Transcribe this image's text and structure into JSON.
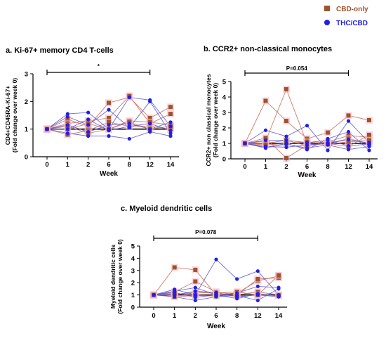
{
  "legend": [
    {
      "name": "CBD-only",
      "color": "#a0522d",
      "marker": "square"
    },
    {
      "name": "THC/CBD",
      "color": "#1f1fe8",
      "marker": "circle"
    }
  ],
  "colors": {
    "cbd": "#a0522d",
    "cbd_halo": "#f2b8c4",
    "thc": "#1f1fe8",
    "thc_line": "#5b5bd6",
    "cbd_line": "#d06a5a",
    "axis": "#000000"
  },
  "chart_data": [
    {
      "type": "line",
      "title": "a. Ki-67+ memory CD4 T-cells",
      "xlabel": "Week",
      "ylabel": [
        "CD4+CD45RA-Ki-67+",
        "(Fold change over week 0)"
      ],
      "categories": [
        "0",
        "1",
        "2",
        "6",
        "8",
        "12",
        "14"
      ],
      "ylim": [
        0,
        3
      ],
      "yticks": [
        0,
        1,
        2,
        3
      ],
      "significance": "*",
      "sig_span": [
        "0",
        "12"
      ],
      "series": [
        {
          "group": "CBD-only",
          "values": [
            1,
            1.35,
            1.1,
            1.95,
            2.15,
            1.4,
            1.8
          ]
        },
        {
          "group": "CBD-only",
          "values": [
            1,
            1.2,
            1.3,
            1.4,
            2.2,
            1.2,
            1.55
          ]
        },
        {
          "group": "CBD-only",
          "values": [
            1,
            0.8,
            0.95,
            1.25,
            1.1,
            1.1,
            1.0
          ]
        },
        {
          "group": "CBD-only",
          "values": [
            1,
            1.0,
            1.2,
            1.0,
            1.3,
            1.25,
            1.15
          ]
        },
        {
          "group": "CBD-only",
          "values": [
            1,
            1.1,
            0.85,
            1.0,
            1.25,
            1.0,
            1.1
          ]
        },
        {
          "group": "THC/CBD",
          "values": [
            1,
            1.55,
            1.6,
            1.0,
            2.15,
            2.05,
            1.1
          ]
        },
        {
          "group": "THC/CBD",
          "values": [
            1,
            1.45,
            1.15,
            1.7,
            1.05,
            2.0,
            0.85
          ]
        },
        {
          "group": "THC/CBD",
          "values": [
            1,
            1.15,
            0.9,
            1.15,
            1.2,
            1.0,
            1.25
          ]
        },
        {
          "group": "THC/CBD",
          "values": [
            1,
            0.85,
            0.75,
            0.75,
            0.65,
            0.9,
            0.75
          ]
        },
        {
          "group": "THC/CBD",
          "values": [
            1,
            1.0,
            1.35,
            0.95,
            1.1,
            1.2,
            0.95
          ]
        }
      ]
    },
    {
      "type": "line",
      "title": "b. CCR2+ non-classical  monocytes",
      "xlabel": "Week",
      "ylabel": [
        "CCR2+ non classical monocytes",
        "(Fold change over week 0)"
      ],
      "categories": [
        "0",
        "1",
        "2",
        "6",
        "8",
        "12",
        "14"
      ],
      "ylim": [
        0,
        5
      ],
      "yticks": [
        0,
        1,
        2,
        3,
        4,
        5
      ],
      "significance": "P=0.054",
      "sig_span": [
        "0",
        "12"
      ],
      "series": [
        {
          "group": "CBD-only",
          "values": [
            1,
            3.75,
            2.45,
            1.3,
            1.7,
            2.8,
            2.5
          ]
        },
        {
          "group": "CBD-only",
          "values": [
            1,
            1.15,
            4.5,
            1.0,
            1.1,
            1.5,
            1.4
          ]
        },
        {
          "group": "CBD-only",
          "values": [
            1,
            1.35,
            0.05,
            0.9,
            1.0,
            0.8,
            1.55
          ]
        },
        {
          "group": "CBD-only",
          "values": [
            1,
            1.0,
            1.2,
            0.85,
            1.0,
            1.3,
            1.0
          ]
        },
        {
          "group": "CBD-only",
          "values": [
            1,
            0.9,
            1.0,
            1.1,
            0.95,
            1.1,
            1.2
          ]
        },
        {
          "group": "THC/CBD",
          "values": [
            1,
            1.85,
            1.45,
            2.15,
            0.55,
            2.45,
            1.05
          ]
        },
        {
          "group": "THC/CBD",
          "values": [
            1,
            0.7,
            1.0,
            0.6,
            1.3,
            1.75,
            0.55
          ]
        },
        {
          "group": "THC/CBD",
          "values": [
            1,
            1.2,
            1.2,
            1.05,
            1.2,
            0.85,
            0.95
          ]
        },
        {
          "group": "THC/CBD",
          "values": [
            1,
            0.8,
            0.75,
            0.9,
            1.0,
            1.25,
            1.0
          ]
        },
        {
          "group": "THC/CBD",
          "values": [
            1,
            0.75,
            0.95,
            0.7,
            0.9,
            0.6,
            0.8
          ]
        }
      ]
    },
    {
      "type": "line",
      "title": "c. Myeloid dendritic cells",
      "xlabel": "Week",
      "ylabel": [
        "Myeloid dendritic cells",
        "(Fold change over week 0)"
      ],
      "categories": [
        "0",
        "1",
        "2",
        "6",
        "8",
        "12",
        "14"
      ],
      "ylim": [
        0,
        5
      ],
      "yticks": [
        0,
        1,
        2,
        3,
        4,
        5
      ],
      "significance": "P=0.078",
      "sig_span": [
        "0",
        "12"
      ],
      "series": [
        {
          "group": "CBD-only",
          "values": [
            1,
            3.25,
            3.05,
            1.0,
            1.15,
            2.15,
            2.55
          ]
        },
        {
          "group": "CBD-only",
          "values": [
            1,
            1.25,
            2.1,
            1.25,
            1.0,
            2.3,
            2.4
          ]
        },
        {
          "group": "CBD-only",
          "values": [
            1,
            1.0,
            1.2,
            1.15,
            1.25,
            1.0,
            2.6
          ]
        },
        {
          "group": "CBD-only",
          "values": [
            1,
            0.85,
            0.95,
            0.9,
            1.0,
            1.25,
            1.0
          ]
        },
        {
          "group": "CBD-only",
          "values": [
            1,
            1.1,
            1.0,
            1.05,
            0.9,
            1.0,
            0.95
          ]
        },
        {
          "group": "THC/CBD",
          "values": [
            1,
            1.45,
            1.0,
            3.9,
            2.3,
            2.95,
            1.0
          ]
        },
        {
          "group": "THC/CBD",
          "values": [
            1,
            1.3,
            1.6,
            1.0,
            1.15,
            1.7,
            1.6
          ]
        },
        {
          "group": "THC/CBD",
          "values": [
            1,
            1.0,
            1.3,
            1.2,
            0.85,
            1.0,
            0.85
          ]
        },
        {
          "group": "THC/CBD",
          "values": [
            1,
            0.85,
            0.55,
            0.85,
            0.95,
            0.55,
            1.5
          ]
        },
        {
          "group": "THC/CBD",
          "values": [
            1,
            1.2,
            0.8,
            1.0,
            0.7,
            1.1,
            0.9
          ]
        }
      ]
    }
  ]
}
